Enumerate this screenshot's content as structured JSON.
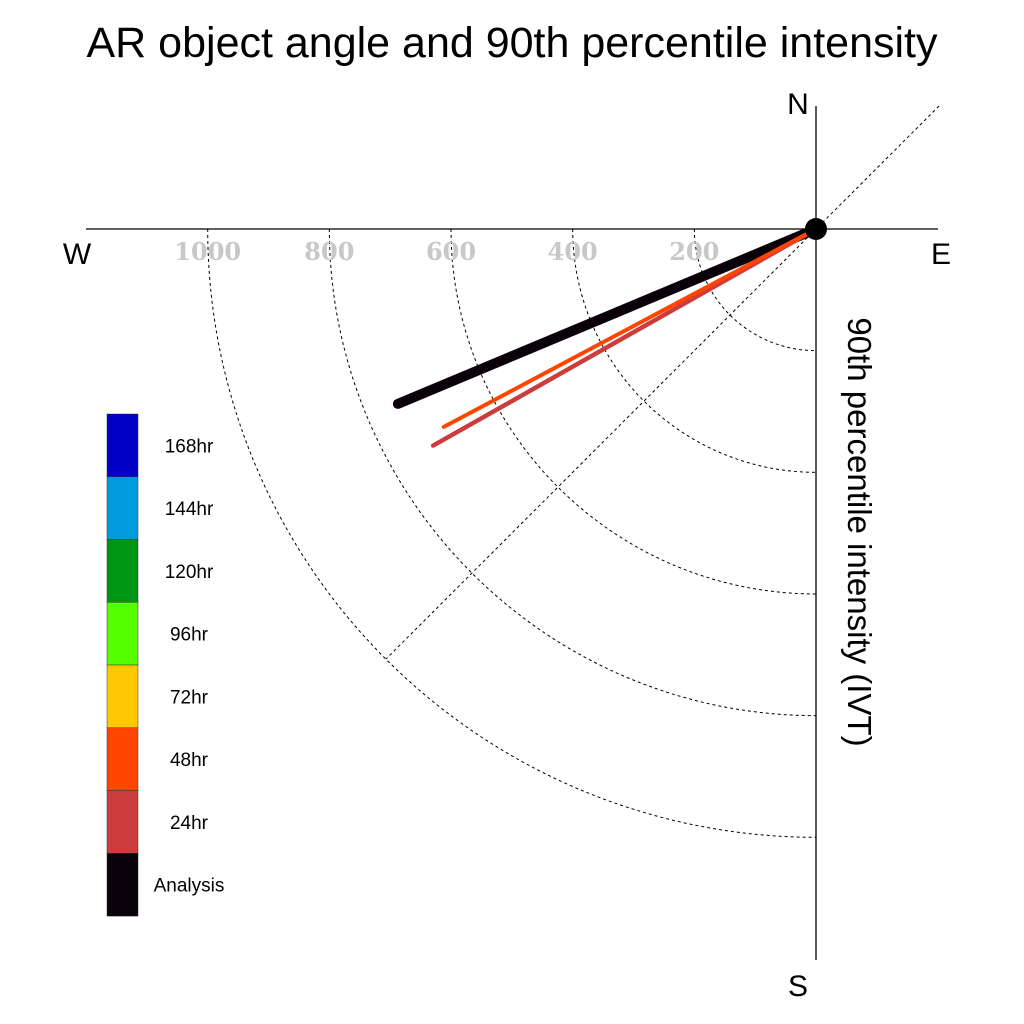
{
  "chart_data": {
    "type": "polar-line",
    "title": "AR object angle and 90th percentile intensity",
    "ylabel": "90th percentile intensity (IVT)",
    "compass": {
      "north": "N",
      "south": "S",
      "east": "E",
      "west": "W"
    },
    "radial_range": [
      0,
      1000
    ],
    "radial_ticks": [
      200,
      400,
      600,
      800,
      1000
    ],
    "radial_tick_labels": [
      "200",
      "400",
      "600",
      "800",
      "1000"
    ],
    "grid": true,
    "legend_position": "left",
    "legend": [
      {
        "label": "168hr",
        "color": "#0000c8"
      },
      {
        "label": "144hr",
        "color": "#009bdc"
      },
      {
        "label": "120hr",
        "color": "#009614"
      },
      {
        "label": "96hr",
        "color": "#55ff00"
      },
      {
        "label": "72hr",
        "color": "#ffc800"
      },
      {
        "label": "48hr",
        "color": "#ff4500"
      },
      {
        "label": "24hr",
        "color": "#cd3c3c"
      },
      {
        "label": "Analysis",
        "color": "#0a000a"
      }
    ],
    "series": [
      {
        "name": "Analysis",
        "color": "#0a000a",
        "angle_deg_from_north": 247.3,
        "intensity": 745
      },
      {
        "name": "24hr",
        "color": "#cd3c3c",
        "angle_deg_from_north": 240.5,
        "intensity": 723
      },
      {
        "name": "48hr",
        "color": "#ff4500",
        "angle_deg_from_north": 242.0,
        "intensity": 693
      }
    ]
  }
}
